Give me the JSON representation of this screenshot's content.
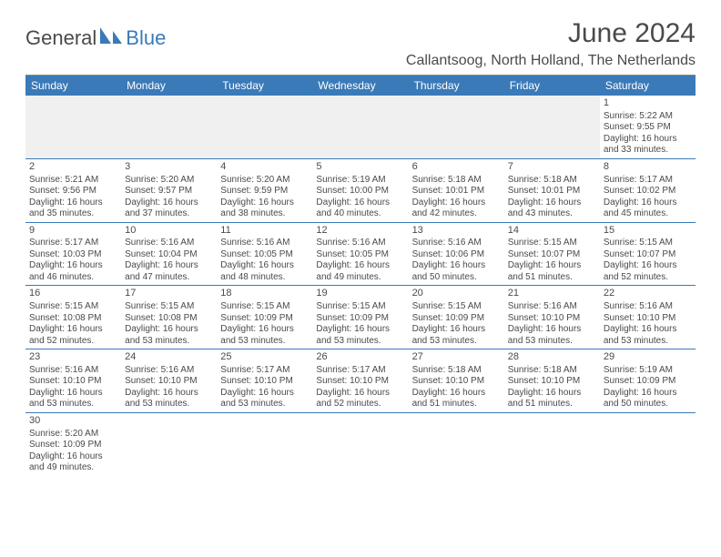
{
  "logo": {
    "part1": "General",
    "part2": "Blue"
  },
  "title": "June 2024",
  "location": "Callantsoog, North Holland, The Netherlands",
  "colors": {
    "header_bg": "#3a7ab8",
    "header_text": "#ffffff",
    "body_text": "#4a4a4a",
    "rule": "#3a7ab8",
    "spacer_bg": "#f0f0f0",
    "accent": "#3a7ab8"
  },
  "weekdays": [
    "Sunday",
    "Monday",
    "Tuesday",
    "Wednesday",
    "Thursday",
    "Friday",
    "Saturday"
  ],
  "weeks": [
    [
      null,
      null,
      null,
      null,
      null,
      null,
      {
        "n": "1",
        "sr": "Sunrise: 5:22 AM",
        "ss": "Sunset: 9:55 PM",
        "dl1": "Daylight: 16 hours",
        "dl2": "and 33 minutes."
      }
    ],
    [
      {
        "n": "2",
        "sr": "Sunrise: 5:21 AM",
        "ss": "Sunset: 9:56 PM",
        "dl1": "Daylight: 16 hours",
        "dl2": "and 35 minutes."
      },
      {
        "n": "3",
        "sr": "Sunrise: 5:20 AM",
        "ss": "Sunset: 9:57 PM",
        "dl1": "Daylight: 16 hours",
        "dl2": "and 37 minutes."
      },
      {
        "n": "4",
        "sr": "Sunrise: 5:20 AM",
        "ss": "Sunset: 9:59 PM",
        "dl1": "Daylight: 16 hours",
        "dl2": "and 38 minutes."
      },
      {
        "n": "5",
        "sr": "Sunrise: 5:19 AM",
        "ss": "Sunset: 10:00 PM",
        "dl1": "Daylight: 16 hours",
        "dl2": "and 40 minutes."
      },
      {
        "n": "6",
        "sr": "Sunrise: 5:18 AM",
        "ss": "Sunset: 10:01 PM",
        "dl1": "Daylight: 16 hours",
        "dl2": "and 42 minutes."
      },
      {
        "n": "7",
        "sr": "Sunrise: 5:18 AM",
        "ss": "Sunset: 10:01 PM",
        "dl1": "Daylight: 16 hours",
        "dl2": "and 43 minutes."
      },
      {
        "n": "8",
        "sr": "Sunrise: 5:17 AM",
        "ss": "Sunset: 10:02 PM",
        "dl1": "Daylight: 16 hours",
        "dl2": "and 45 minutes."
      }
    ],
    [
      {
        "n": "9",
        "sr": "Sunrise: 5:17 AM",
        "ss": "Sunset: 10:03 PM",
        "dl1": "Daylight: 16 hours",
        "dl2": "and 46 minutes."
      },
      {
        "n": "10",
        "sr": "Sunrise: 5:16 AM",
        "ss": "Sunset: 10:04 PM",
        "dl1": "Daylight: 16 hours",
        "dl2": "and 47 minutes."
      },
      {
        "n": "11",
        "sr": "Sunrise: 5:16 AM",
        "ss": "Sunset: 10:05 PM",
        "dl1": "Daylight: 16 hours",
        "dl2": "and 48 minutes."
      },
      {
        "n": "12",
        "sr": "Sunrise: 5:16 AM",
        "ss": "Sunset: 10:05 PM",
        "dl1": "Daylight: 16 hours",
        "dl2": "and 49 minutes."
      },
      {
        "n": "13",
        "sr": "Sunrise: 5:16 AM",
        "ss": "Sunset: 10:06 PM",
        "dl1": "Daylight: 16 hours",
        "dl2": "and 50 minutes."
      },
      {
        "n": "14",
        "sr": "Sunrise: 5:15 AM",
        "ss": "Sunset: 10:07 PM",
        "dl1": "Daylight: 16 hours",
        "dl2": "and 51 minutes."
      },
      {
        "n": "15",
        "sr": "Sunrise: 5:15 AM",
        "ss": "Sunset: 10:07 PM",
        "dl1": "Daylight: 16 hours",
        "dl2": "and 52 minutes."
      }
    ],
    [
      {
        "n": "16",
        "sr": "Sunrise: 5:15 AM",
        "ss": "Sunset: 10:08 PM",
        "dl1": "Daylight: 16 hours",
        "dl2": "and 52 minutes."
      },
      {
        "n": "17",
        "sr": "Sunrise: 5:15 AM",
        "ss": "Sunset: 10:08 PM",
        "dl1": "Daylight: 16 hours",
        "dl2": "and 53 minutes."
      },
      {
        "n": "18",
        "sr": "Sunrise: 5:15 AM",
        "ss": "Sunset: 10:09 PM",
        "dl1": "Daylight: 16 hours",
        "dl2": "and 53 minutes."
      },
      {
        "n": "19",
        "sr": "Sunrise: 5:15 AM",
        "ss": "Sunset: 10:09 PM",
        "dl1": "Daylight: 16 hours",
        "dl2": "and 53 minutes."
      },
      {
        "n": "20",
        "sr": "Sunrise: 5:15 AM",
        "ss": "Sunset: 10:09 PM",
        "dl1": "Daylight: 16 hours",
        "dl2": "and 53 minutes."
      },
      {
        "n": "21",
        "sr": "Sunrise: 5:16 AM",
        "ss": "Sunset: 10:10 PM",
        "dl1": "Daylight: 16 hours",
        "dl2": "and 53 minutes."
      },
      {
        "n": "22",
        "sr": "Sunrise: 5:16 AM",
        "ss": "Sunset: 10:10 PM",
        "dl1": "Daylight: 16 hours",
        "dl2": "and 53 minutes."
      }
    ],
    [
      {
        "n": "23",
        "sr": "Sunrise: 5:16 AM",
        "ss": "Sunset: 10:10 PM",
        "dl1": "Daylight: 16 hours",
        "dl2": "and 53 minutes."
      },
      {
        "n": "24",
        "sr": "Sunrise: 5:16 AM",
        "ss": "Sunset: 10:10 PM",
        "dl1": "Daylight: 16 hours",
        "dl2": "and 53 minutes."
      },
      {
        "n": "25",
        "sr": "Sunrise: 5:17 AM",
        "ss": "Sunset: 10:10 PM",
        "dl1": "Daylight: 16 hours",
        "dl2": "and 53 minutes."
      },
      {
        "n": "26",
        "sr": "Sunrise: 5:17 AM",
        "ss": "Sunset: 10:10 PM",
        "dl1": "Daylight: 16 hours",
        "dl2": "and 52 minutes."
      },
      {
        "n": "27",
        "sr": "Sunrise: 5:18 AM",
        "ss": "Sunset: 10:10 PM",
        "dl1": "Daylight: 16 hours",
        "dl2": "and 51 minutes."
      },
      {
        "n": "28",
        "sr": "Sunrise: 5:18 AM",
        "ss": "Sunset: 10:10 PM",
        "dl1": "Daylight: 16 hours",
        "dl2": "and 51 minutes."
      },
      {
        "n": "29",
        "sr": "Sunrise: 5:19 AM",
        "ss": "Sunset: 10:09 PM",
        "dl1": "Daylight: 16 hours",
        "dl2": "and 50 minutes."
      }
    ],
    [
      {
        "n": "30",
        "sr": "Sunrise: 5:20 AM",
        "ss": "Sunset: 10:09 PM",
        "dl1": "Daylight: 16 hours",
        "dl2": "and 49 minutes."
      },
      null,
      null,
      null,
      null,
      null,
      null
    ]
  ]
}
